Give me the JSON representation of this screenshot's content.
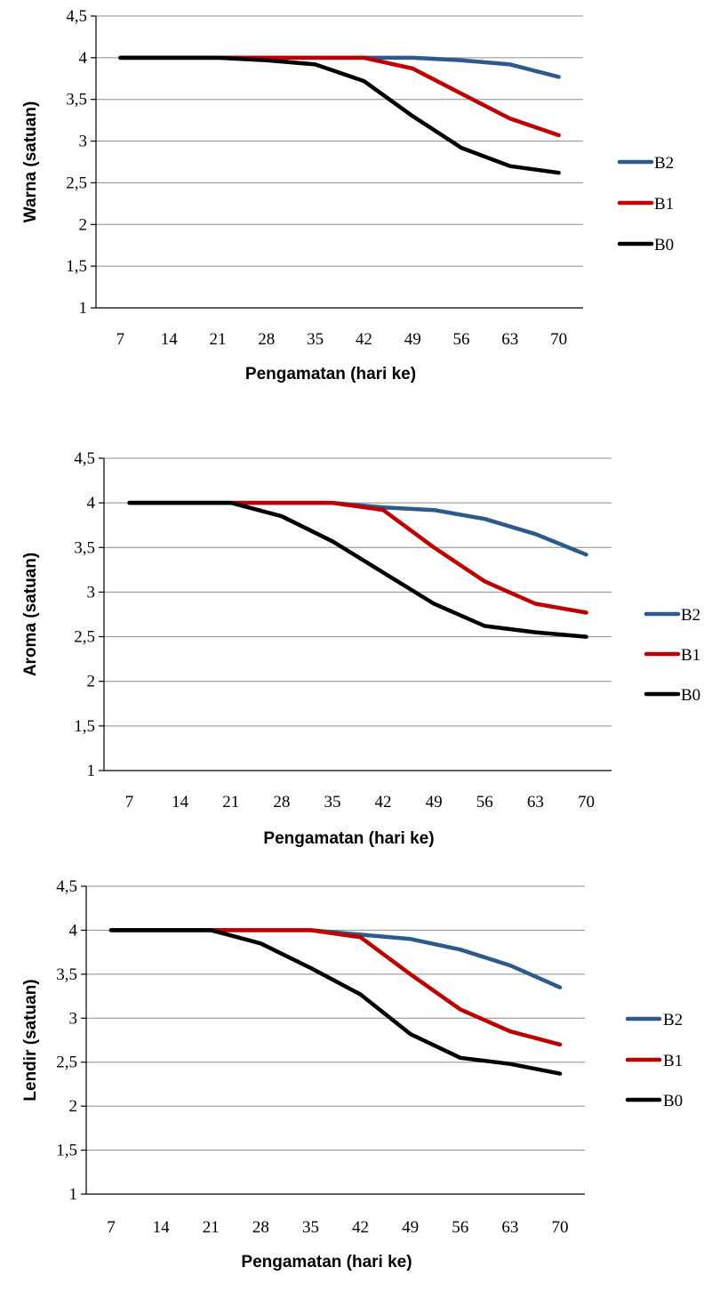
{
  "chart_data": [
    {
      "type": "line",
      "xlabel": "Pengamatan (hari ke)",
      "ylabel": "Warna (satuan)",
      "categories": [
        "7",
        "14",
        "21",
        "28",
        "35",
        "42",
        "49",
        "56",
        "63",
        "70"
      ],
      "ylim": [
        1,
        4.5
      ],
      "yticks": [
        "1",
        "1,5",
        "2",
        "2,5",
        "3",
        "3,5",
        "4",
        "4,5"
      ],
      "grid": true,
      "legend_position": "right",
      "series": [
        {
          "name": "B2",
          "color": "#2c5a8c",
          "values": [
            4,
            4,
            4,
            4,
            4,
            4,
            4,
            3.97,
            3.92,
            3.77
          ]
        },
        {
          "name": "B1",
          "color": "#c00000",
          "values": [
            4,
            4,
            4,
            4,
            4,
            4,
            3.87,
            3.57,
            3.27,
            3.07
          ]
        },
        {
          "name": "B0",
          "color": "#000000",
          "values": [
            4,
            4,
            4,
            3.97,
            3.92,
            3.72,
            3.3,
            2.92,
            2.7,
            2.62
          ]
        }
      ]
    },
    {
      "type": "line",
      "xlabel": "Pengamatan (hari ke)",
      "ylabel": "Aroma (satuan)",
      "categories": [
        "7",
        "14",
        "21",
        "28",
        "35",
        "42",
        "49",
        "56",
        "63",
        "70"
      ],
      "ylim": [
        1,
        4.5
      ],
      "yticks": [
        "1",
        "1,5",
        "2",
        "2,5",
        "3",
        "3,5",
        "4",
        "4,5"
      ],
      "grid": true,
      "legend_position": "right",
      "series": [
        {
          "name": "B2",
          "color": "#2c5a8c",
          "values": [
            4,
            4,
            4,
            4,
            4,
            3.95,
            3.92,
            3.82,
            3.65,
            3.42
          ]
        },
        {
          "name": "B1",
          "color": "#c00000",
          "values": [
            4,
            4,
            4,
            4,
            4,
            3.92,
            3.5,
            3.12,
            2.87,
            2.77
          ]
        },
        {
          "name": "B0",
          "color": "#000000",
          "values": [
            4,
            4,
            4,
            3.85,
            3.57,
            3.22,
            2.87,
            2.62,
            2.55,
            2.5
          ]
        }
      ]
    },
    {
      "type": "line",
      "xlabel": "Pengamatan (hari ke)",
      "ylabel": "Lendir (satuan)",
      "categories": [
        "7",
        "14",
        "21",
        "28",
        "35",
        "42",
        "49",
        "56",
        "63",
        "70"
      ],
      "ylim": [
        1,
        4.5
      ],
      "yticks": [
        "1",
        "1,5",
        "2",
        "2,5",
        "3",
        "3,5",
        "4",
        "4,5"
      ],
      "grid": true,
      "legend_position": "right",
      "series": [
        {
          "name": "B2",
          "color": "#2c5a8c",
          "values": [
            4,
            4,
            4,
            4,
            4,
            3.95,
            3.9,
            3.78,
            3.6,
            3.35
          ]
        },
        {
          "name": "B1",
          "color": "#c00000",
          "values": [
            4,
            4,
            4,
            4,
            4,
            3.92,
            3.5,
            3.1,
            2.85,
            2.7
          ]
        },
        {
          "name": "B0",
          "color": "#000000",
          "values": [
            4,
            4,
            4,
            3.85,
            3.57,
            3.27,
            2.82,
            2.55,
            2.48,
            2.37
          ]
        }
      ]
    }
  ]
}
